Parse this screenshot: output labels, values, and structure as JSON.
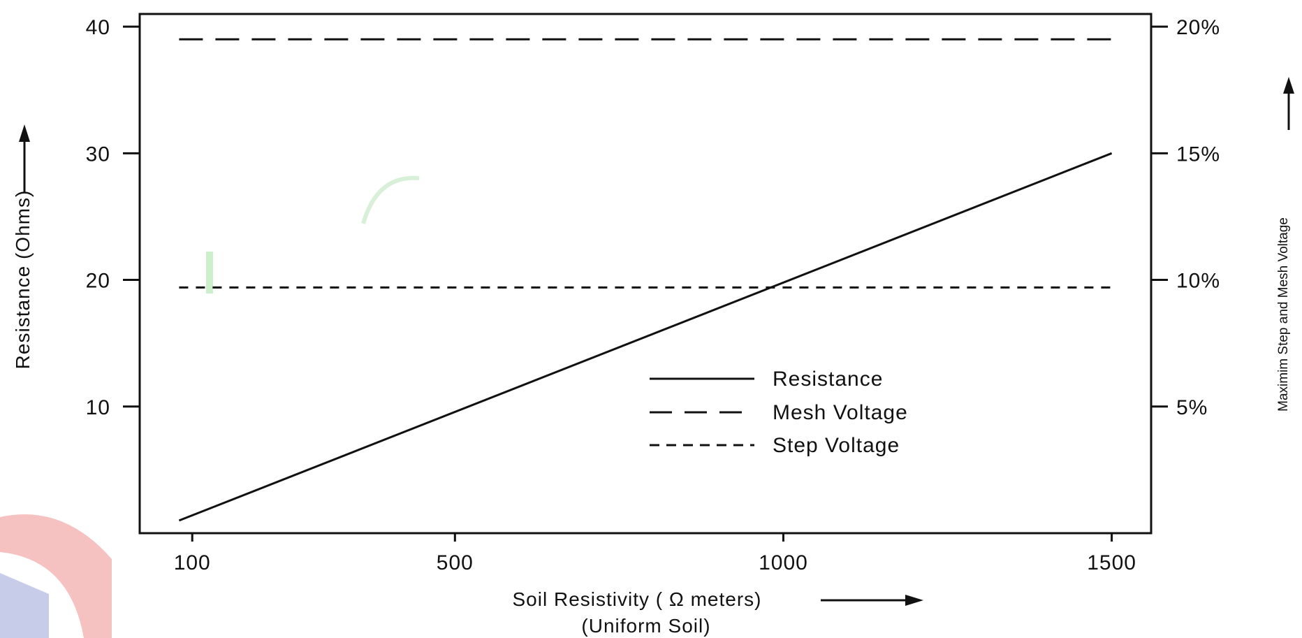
{
  "chart_data": {
    "type": "line",
    "xlabel": "Soil Resistivity ( Ω meters)",
    "xlabel_sub": "(Uniform Soil)",
    "ylabel": "Resistance (Ohms)",
    "y2label": "Maximim Step and Mesh Voltage",
    "xlim": [
      20,
      1560
    ],
    "ylim": [
      0,
      41
    ],
    "y2lim": [
      0,
      20.5
    ],
    "x_ticks": [
      100,
      500,
      1000,
      1500
    ],
    "x_tick_labels": [
      "100",
      "500",
      "1000",
      "1500"
    ],
    "y_ticks": [
      10,
      20,
      30,
      40
    ],
    "y_tick_labels": [
      "10",
      "20",
      "30",
      "40"
    ],
    "y2_ticks": [
      5,
      10,
      15,
      20
    ],
    "y2_tick_labels": [
      "5%",
      "10%",
      "15%",
      "20%"
    ],
    "grid": false,
    "legend_position": "center-right",
    "series": [
      {
        "name": "Resistance",
        "axis": "left",
        "style": "solid",
        "x": [
          80,
          1500
        ],
        "y": [
          1,
          30
        ]
      },
      {
        "name": "Mesh Voltage",
        "axis": "right",
        "style": "long-dash",
        "x": [
          80,
          1500
        ],
        "y": [
          19.5,
          19.5
        ]
      },
      {
        "name": "Step Voltage",
        "axis": "right",
        "style": "short-dash",
        "x": [
          80,
          1500
        ],
        "y": [
          9.7,
          9.7
        ]
      }
    ]
  }
}
